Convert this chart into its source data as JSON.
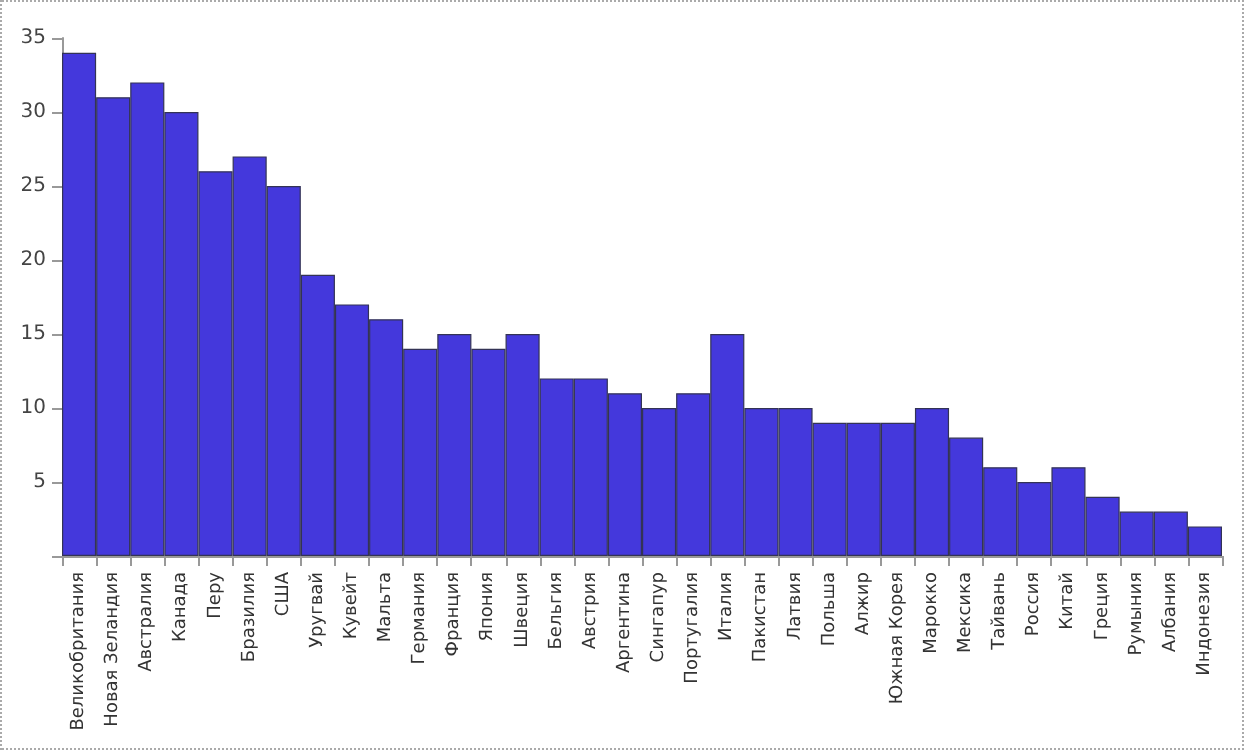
{
  "chart_data": {
    "type": "bar",
    "categories": [
      "Великобритания",
      "Новая Зеландия",
      "Австралия",
      "Канада",
      "Перу",
      "Бразилия",
      "США",
      "Уругвай",
      "Кувейт",
      "Мальта",
      "Германия",
      "Франция",
      "Япония",
      "Швеция",
      "Бельгия",
      "Австрия",
      "Аргентина",
      "Сингапур",
      "Португалия",
      "Италия",
      "Пакистан",
      "Латвия",
      "Польша",
      "Алжир",
      "Южная Корея",
      "Марокко",
      "Мексика",
      "Тайвань",
      "Россия",
      "Китай",
      "Греция",
      "Румыния",
      "Албания",
      "Индонезия"
    ],
    "values": [
      34,
      31,
      32,
      30,
      26,
      27,
      25,
      19,
      17,
      16,
      14,
      15,
      14,
      15,
      12,
      12,
      11,
      10,
      11,
      15,
      10,
      10,
      9,
      9,
      9,
      10,
      8,
      6,
      5,
      6,
      4,
      3,
      3,
      2
    ],
    "color": "#4438dc",
    "ylim": [
      0,
      35
    ],
    "yticks": [
      {
        "value": 0,
        "label": null
      },
      5,
      10,
      15,
      20,
      25,
      30,
      35
    ],
    "grid": false
  }
}
